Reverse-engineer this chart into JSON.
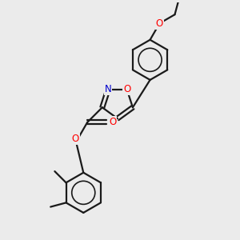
{
  "background_color": "#ebebeb",
  "bond_color": "#1a1a1a",
  "o_color": "#ff0000",
  "n_color": "#0000cc",
  "line_width": 1.6,
  "font_size": 8.5,
  "figsize": [
    3.0,
    3.0
  ],
  "dpi": 100,
  "xlim": [
    -0.5,
    3.0
  ],
  "ylim": [
    -1.5,
    3.2
  ]
}
